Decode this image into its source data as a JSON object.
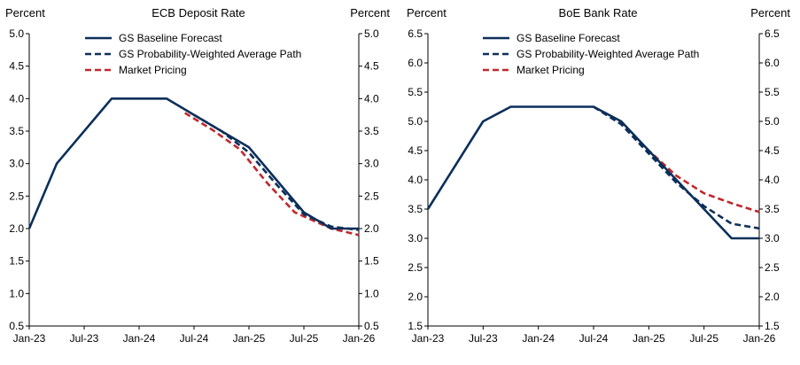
{
  "chart_data": [
    {
      "type": "line",
      "title": "ECB Deposit Rate",
      "ylabel_left": "Percent",
      "ylabel_right": "Percent",
      "x_tick_labels": [
        "Jan-23",
        "Jul-23",
        "Jan-24",
        "Jul-24",
        "Jan-25",
        "Jul-25",
        "Jan-26"
      ],
      "x_range_months": [
        0,
        36
      ],
      "y_ticks": [
        "0.5",
        "1.0",
        "1.5",
        "2.0",
        "2.5",
        "3.0",
        "3.5",
        "4.0",
        "4.5",
        "5.0"
      ],
      "ylim": [
        0.5,
        5.0
      ],
      "legend_position": "top-center",
      "series": [
        {
          "name": "GS Baseline Forecast",
          "style": "solid",
          "color": "#0c2f5a",
          "points": [
            [
              0,
              2.0
            ],
            [
              3,
              3.0
            ],
            [
              9,
              4.0
            ],
            [
              15,
              4.0
            ],
            [
              18,
              3.75
            ],
            [
              21,
              3.5
            ],
            [
              24,
              3.25
            ],
            [
              27,
              2.75
            ],
            [
              30,
              2.25
            ],
            [
              33,
              2.0
            ],
            [
              36,
              2.0
            ]
          ]
        },
        {
          "name": "GS Probability-Weighted Average Path",
          "style": "dashed",
          "color": "#0c2f5a",
          "points": [
            [
              18,
              3.75
            ],
            [
              21,
              3.5
            ],
            [
              24,
              3.17
            ],
            [
              27,
              2.68
            ],
            [
              30,
              2.22
            ],
            [
              33,
              2.03
            ],
            [
              36,
              1.98
            ]
          ]
        },
        {
          "name": "Market Pricing",
          "style": "dashed",
          "color": "#c0282d",
          "points": [
            [
              17,
              3.78
            ],
            [
              20,
              3.52
            ],
            [
              23,
              3.22
            ],
            [
              26,
              2.7
            ],
            [
              29,
              2.25
            ],
            [
              33,
              2.0
            ],
            [
              36,
              1.9
            ]
          ]
        }
      ]
    },
    {
      "type": "line",
      "title": "BoE Bank Rate",
      "ylabel_left": "Percent",
      "ylabel_right": "Percent",
      "x_tick_labels": [
        "Jan-23",
        "Jul-23",
        "Jan-24",
        "Jul-24",
        "Jan-25",
        "Jul-25",
        "Jan-26"
      ],
      "x_range_months": [
        0,
        36
      ],
      "y_ticks": [
        "1.5",
        "2.0",
        "2.5",
        "3.0",
        "3.5",
        "4.0",
        "4.5",
        "5.0",
        "5.5",
        "6.0",
        "6.5"
      ],
      "ylim": [
        1.5,
        6.5
      ],
      "legend_position": "top-center",
      "series": [
        {
          "name": "GS Baseline Forecast",
          "style": "solid",
          "color": "#0c2f5a",
          "points": [
            [
              0,
              3.5
            ],
            [
              6,
              5.0
            ],
            [
              9,
              5.25
            ],
            [
              18,
              5.25
            ],
            [
              21,
              5.0
            ],
            [
              24,
              4.5
            ],
            [
              27,
              4.0
            ],
            [
              30,
              3.5
            ],
            [
              33,
              3.0
            ],
            [
              36,
              3.0
            ]
          ]
        },
        {
          "name": "GS Probability-Weighted Average Path",
          "style": "dashed",
          "color": "#0c2f5a",
          "points": [
            [
              18,
              5.25
            ],
            [
              21,
              4.95
            ],
            [
              24,
              4.45
            ],
            [
              27,
              3.95
            ],
            [
              30,
              3.55
            ],
            [
              33,
              3.25
            ],
            [
              36,
              3.17
            ]
          ]
        },
        {
          "name": "Market Pricing",
          "style": "dashed",
          "color": "#c0282d",
          "points": [
            [
              18,
              5.25
            ],
            [
              21,
              4.97
            ],
            [
              24,
              4.5
            ],
            [
              27,
              4.07
            ],
            [
              30,
              3.77
            ],
            [
              33,
              3.6
            ],
            [
              36,
              3.45
            ]
          ]
        }
      ]
    }
  ]
}
